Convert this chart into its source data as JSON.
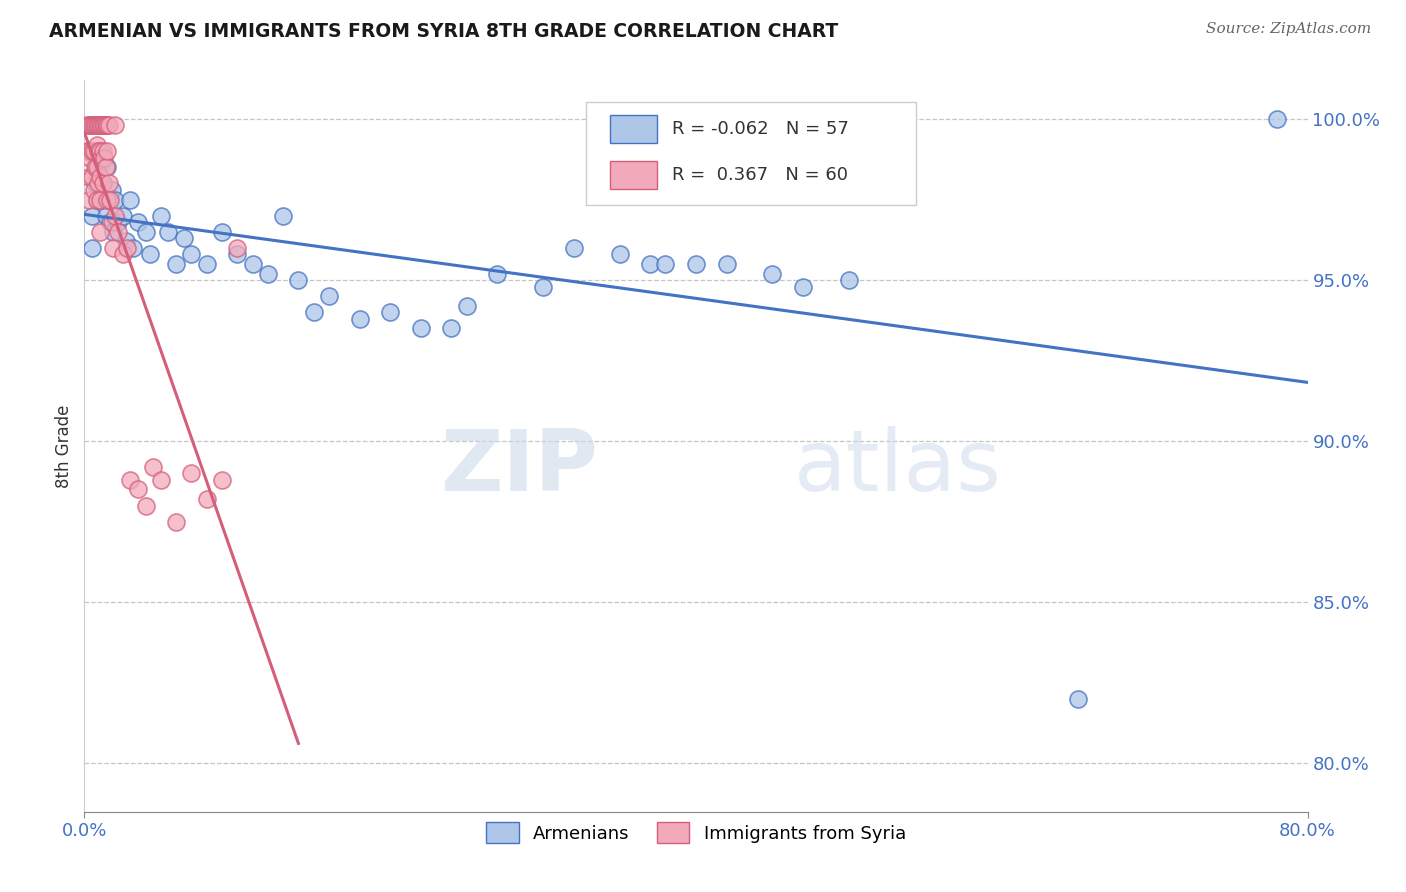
{
  "title": "ARMENIAN VS IMMIGRANTS FROM SYRIA 8TH GRADE CORRELATION CHART",
  "source": "Source: ZipAtlas.com",
  "ylabel": "8th Grade",
  "ylabel_ticks": [
    "80.0%",
    "85.0%",
    "90.0%",
    "95.0%",
    "100.0%"
  ],
  "ylabel_values": [
    0.8,
    0.85,
    0.9,
    0.95,
    1.0
  ],
  "xmin": 0.0,
  "xmax": 0.8,
  "ymin": 0.785,
  "ymax": 1.012,
  "r_blue": -0.062,
  "n_blue": 57,
  "r_pink": 0.367,
  "n_pink": 60,
  "legend_label_blue": "Armenians",
  "legend_label_pink": "Immigrants from Syria",
  "blue_color": "#aec6e8",
  "pink_color": "#f2aabb",
  "blue_line_color": "#4472c4",
  "pink_line_color": "#d45f7a",
  "watermark_zip": "ZIP",
  "watermark_atlas": "atlas",
  "blue_scatter_x": [
    0.005,
    0.005,
    0.007,
    0.008,
    0.01,
    0.01,
    0.01,
    0.012,
    0.012,
    0.014,
    0.015,
    0.015,
    0.016,
    0.017,
    0.018,
    0.019,
    0.02,
    0.022,
    0.025,
    0.027,
    0.03,
    0.032,
    0.035,
    0.04,
    0.043,
    0.05,
    0.055,
    0.06,
    0.065,
    0.07,
    0.08,
    0.09,
    0.1,
    0.11,
    0.12,
    0.13,
    0.14,
    0.15,
    0.16,
    0.18,
    0.2,
    0.22,
    0.24,
    0.25,
    0.27,
    0.3,
    0.32,
    0.35,
    0.37,
    0.38,
    0.4,
    0.42,
    0.45,
    0.47,
    0.5,
    0.65,
    0.78
  ],
  "blue_scatter_y": [
    0.97,
    0.96,
    0.98,
    0.975,
    0.998,
    0.99,
    0.985,
    0.98,
    0.975,
    0.97,
    0.998,
    0.985,
    0.975,
    0.968,
    0.978,
    0.965,
    0.975,
    0.968,
    0.97,
    0.962,
    0.975,
    0.96,
    0.968,
    0.965,
    0.958,
    0.97,
    0.965,
    0.955,
    0.963,
    0.958,
    0.955,
    0.965,
    0.958,
    0.955,
    0.952,
    0.97,
    0.95,
    0.94,
    0.945,
    0.938,
    0.94,
    0.935,
    0.935,
    0.942,
    0.952,
    0.948,
    0.96,
    0.958,
    0.955,
    0.955,
    0.955,
    0.955,
    0.952,
    0.948,
    0.95,
    0.82,
    1.0
  ],
  "pink_scatter_x": [
    0.002,
    0.002,
    0.003,
    0.003,
    0.003,
    0.003,
    0.004,
    0.004,
    0.005,
    0.005,
    0.005,
    0.006,
    0.006,
    0.006,
    0.007,
    0.007,
    0.008,
    0.008,
    0.008,
    0.008,
    0.009,
    0.009,
    0.009,
    0.01,
    0.01,
    0.01,
    0.01,
    0.01,
    0.011,
    0.011,
    0.012,
    0.012,
    0.012,
    0.013,
    0.013,
    0.014,
    0.014,
    0.015,
    0.015,
    0.015,
    0.016,
    0.016,
    0.017,
    0.018,
    0.019,
    0.02,
    0.02,
    0.022,
    0.025,
    0.028,
    0.03,
    0.035,
    0.04,
    0.045,
    0.05,
    0.06,
    0.07,
    0.08,
    0.09,
    0.1
  ],
  "pink_scatter_y": [
    0.998,
    0.99,
    0.998,
    0.99,
    0.982,
    0.975,
    0.998,
    0.988,
    0.998,
    0.99,
    0.982,
    0.998,
    0.99,
    0.978,
    0.998,
    0.985,
    0.998,
    0.992,
    0.985,
    0.975,
    0.998,
    0.99,
    0.98,
    0.998,
    0.99,
    0.982,
    0.975,
    0.965,
    0.998,
    0.988,
    0.998,
    0.99,
    0.98,
    0.998,
    0.988,
    0.998,
    0.985,
    0.998,
    0.99,
    0.975,
    0.998,
    0.98,
    0.975,
    0.968,
    0.96,
    0.998,
    0.97,
    0.965,
    0.958,
    0.96,
    0.888,
    0.885,
    0.88,
    0.892,
    0.888,
    0.875,
    0.89,
    0.882,
    0.888,
    0.96
  ]
}
